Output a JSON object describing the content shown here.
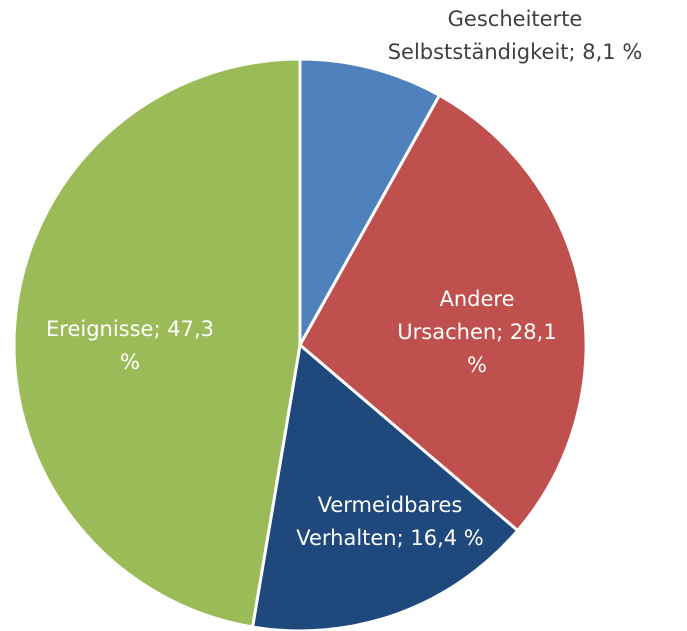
{
  "chart_data": {
    "type": "pie",
    "categories": [
      "Gescheiterte Selbstständigkeit",
      "Andere Ursachen",
      "Vermeidbares Verhalten",
      "Ereignisse"
    ],
    "values": [
      8.1,
      28.1,
      16.4,
      47.3
    ],
    "value_labels": [
      [
        "Gescheiterte",
        "Selbstständigkeit; 8,1 %"
      ],
      [
        "Andere",
        "Ursachen; 28,1",
        "%"
      ],
      [
        "Vermeidbares",
        "Verhalten; 16,4 %"
      ],
      [
        "Ereignisse; 47,3",
        "%"
      ]
    ],
    "colors": [
      "#4f81bd",
      "#c0504d",
      "#1f497d",
      "#9bbb59"
    ]
  }
}
